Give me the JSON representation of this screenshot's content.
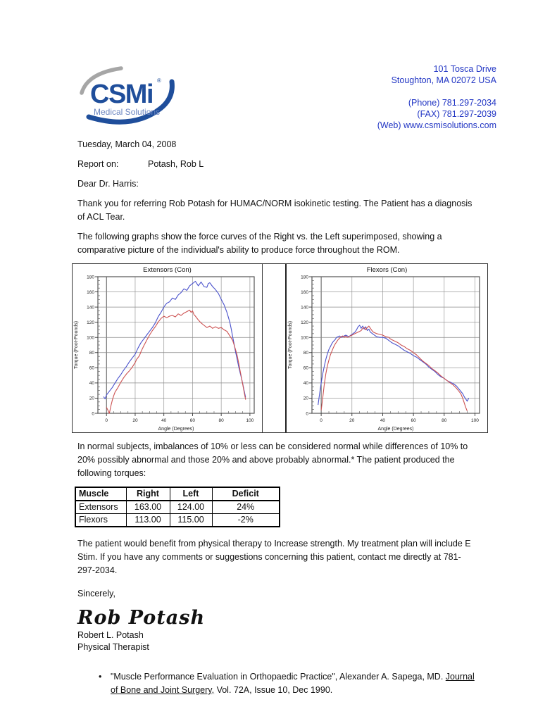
{
  "header": {
    "logo_text": "CSMi",
    "logo_registered": "®",
    "logo_subtitle": "Medical Solutions",
    "address_line1": "101 Tosca Drive",
    "address_line2": "Stoughton, MA 02072 USA",
    "phone": "(Phone) 781.297-2034",
    "fax": "(FAX) 781.297-2039",
    "web": "(Web) www.csmisolutions.com"
  },
  "letter": {
    "date": "Tuesday, March 04, 2008",
    "report_label": "Report on:",
    "patient": "Potash, Rob L",
    "salutation": "Dear Dr. Harris:",
    "para_referral": "Thank you for referring Rob Potash for HUMAC/NORM isokinetic testing.  The Patient has a diagnosis\nof ACL Tear.",
    "para_graphs": "The following graphs show the force curves of the Right vs. the Left superimposed, showing a\ncomparative picture of the individual's ability to produce force throughout the ROM.",
    "para_norms": "In normal subjects, imbalances of 10% or less can be considered normal while differences of 10% to\n20% possibly abnormal and those 20% and above probably abnormal.* The patient produced the\nfollowing torques:",
    "para_plan": "The patient would benefit from physical therapy to Increase strength.  My treatment plan will include E\nStim. If you have any comments or suggestions concerning this patient, contact me directly at 781-\n297-2034.",
    "closing": "Sincerely,",
    "signature_script": "Rob Potash",
    "signer_name": "Robert L. Potash",
    "signer_title": "Physical Therapist"
  },
  "torque_table": {
    "headers": [
      "Muscle",
      "Right",
      "Left",
      "Deficit"
    ],
    "rows": [
      [
        "Extensors",
        "163.00",
        "124.00",
        "24%"
      ],
      [
        "Flexors",
        "113.00",
        "115.00",
        "-2%"
      ]
    ]
  },
  "footnote": {
    "bullet": "•",
    "before": "\"Muscle Performance Evaluation in Orthopaedic Practice\", Alexander A. Sapega, MD. ",
    "underlined": "Journal\nof Bone and Joint Surgery,",
    "after": " Vol. 72A, Issue 10, Dec 1990."
  },
  "colors": {
    "accent_blue": "#2236c4",
    "logo_blue": "#1f4e9b",
    "curve_right_blue": "#4a52cc",
    "curve_left_red": "#cc5252"
  },
  "chart_data": [
    {
      "type": "line",
      "title": "Extensors (Con)",
      "xlabel": "Angle (Degrees)",
      "ylabel": "Torque (Foot-Pounds)",
      "xlim": [
        -6,
        103
      ],
      "ylim": [
        0,
        180
      ],
      "xticks": [
        0,
        20,
        40,
        60,
        80,
        100
      ],
      "yticks": [
        0,
        20,
        40,
        60,
        80,
        100,
        120,
        140,
        160,
        180
      ],
      "grid": true,
      "legend": "none",
      "series": [
        {
          "name": "Right",
          "color": "#4a52cc",
          "points": [
            [
              -2,
              22
            ],
            [
              -1,
              19
            ],
            [
              0,
              24
            ],
            [
              2,
              29
            ],
            [
              4,
              34
            ],
            [
              6,
              40
            ],
            [
              8,
              46
            ],
            [
              10,
              51
            ],
            [
              12,
              57
            ],
            [
              14,
              62
            ],
            [
              16,
              68
            ],
            [
              18,
              73
            ],
            [
              20,
              78
            ],
            [
              22,
              86
            ],
            [
              24,
              93
            ],
            [
              26,
              98
            ],
            [
              28,
              103
            ],
            [
              30,
              108
            ],
            [
              32,
              113
            ],
            [
              34,
              119
            ],
            [
              36,
              127
            ],
            [
              38,
              133
            ],
            [
              40,
              140
            ],
            [
              42,
              145
            ],
            [
              44,
              147
            ],
            [
              46,
              152
            ],
            [
              48,
              150
            ],
            [
              50,
              156
            ],
            [
              52,
              159
            ],
            [
              54,
              164
            ],
            [
              56,
              162
            ],
            [
              58,
              168
            ],
            [
              60,
              171
            ],
            [
              62,
              174
            ],
            [
              64,
              168
            ],
            [
              66,
              173
            ],
            [
              68,
              167
            ],
            [
              70,
              166
            ],
            [
              71,
              171
            ],
            [
              72,
              172
            ],
            [
              74,
              167
            ],
            [
              76,
              163
            ],
            [
              78,
              158
            ],
            [
              80,
              150
            ],
            [
              82,
              143
            ],
            [
              84,
              133
            ],
            [
              86,
              120
            ],
            [
              87,
              111
            ],
            [
              88,
              101
            ],
            [
              89,
              91
            ],
            [
              90,
              81
            ],
            [
              91,
              72
            ],
            [
              92,
              63
            ],
            [
              93,
              55
            ],
            [
              94,
              47
            ],
            [
              95,
              39
            ],
            [
              96,
              30
            ],
            [
              97,
              21
            ]
          ]
        },
        {
          "name": "Left",
          "color": "#cc5252",
          "points": [
            [
              0,
              8
            ],
            [
              1,
              4
            ],
            [
              2,
              0
            ],
            [
              3,
              9
            ],
            [
              4,
              17
            ],
            [
              5,
              23
            ],
            [
              6,
              28
            ],
            [
              8,
              34
            ],
            [
              10,
              41
            ],
            [
              12,
              47
            ],
            [
              14,
              52
            ],
            [
              16,
              56
            ],
            [
              18,
              61
            ],
            [
              20,
              67
            ],
            [
              21,
              71
            ],
            [
              23,
              76
            ],
            [
              24,
              81
            ],
            [
              26,
              89
            ],
            [
              28,
              96
            ],
            [
              30,
              103
            ],
            [
              32,
              109
            ],
            [
              34,
              114
            ],
            [
              36,
              120
            ],
            [
              38,
              125
            ],
            [
              40,
              128
            ],
            [
              42,
              126
            ],
            [
              44,
              128
            ],
            [
              46,
              129
            ],
            [
              48,
              127
            ],
            [
              50,
              131
            ],
            [
              52,
              129
            ],
            [
              54,
              132
            ],
            [
              56,
              134
            ],
            [
              58,
              136
            ],
            [
              59,
              133
            ],
            [
              60,
              135
            ],
            [
              61,
              130
            ],
            [
              62,
              128
            ],
            [
              64,
              123
            ],
            [
              66,
              119
            ],
            [
              68,
              116
            ],
            [
              70,
              113
            ],
            [
              72,
              115
            ],
            [
              74,
              112
            ],
            [
              76,
              114
            ],
            [
              78,
              112
            ],
            [
              80,
              113
            ],
            [
              82,
              110
            ],
            [
              84,
              108
            ],
            [
              85,
              105
            ],
            [
              86,
              102
            ],
            [
              88,
              96
            ],
            [
              89,
              90
            ],
            [
              90,
              84
            ],
            [
              91,
              77
            ],
            [
              92,
              68
            ],
            [
              93,
              58
            ],
            [
              94,
              48
            ],
            [
              95,
              38
            ],
            [
              96,
              28
            ],
            [
              97,
              18
            ]
          ]
        }
      ]
    },
    {
      "type": "line",
      "title": "Flexors (Con)",
      "xlabel": "Angle (Degrees)",
      "ylabel": "Torque (Foot-Pounds)",
      "xlim": [
        -6,
        103
      ],
      "ylim": [
        0,
        180
      ],
      "xticks": [
        0,
        20,
        40,
        60,
        80,
        100
      ],
      "yticks": [
        0,
        20,
        40,
        60,
        80,
        100,
        120,
        140,
        160,
        180
      ],
      "grid": true,
      "legend": "none",
      "series": [
        {
          "name": "Right",
          "color": "#4a52cc",
          "points": [
            [
              -2,
              11
            ],
            [
              -1,
              26
            ],
            [
              0,
              40
            ],
            [
              1,
              52
            ],
            [
              2,
              62
            ],
            [
              3,
              71
            ],
            [
              4,
              78
            ],
            [
              5,
              84
            ],
            [
              6,
              88
            ],
            [
              7,
              92
            ],
            [
              8,
              95
            ],
            [
              9,
              97
            ],
            [
              10,
              100
            ],
            [
              12,
              102
            ],
            [
              13,
              100
            ],
            [
              14,
              101
            ],
            [
              16,
              103
            ],
            [
              18,
              101
            ],
            [
              20,
              104
            ],
            [
              22,
              107
            ],
            [
              23,
              110
            ],
            [
              24,
              114
            ],
            [
              25,
              116
            ],
            [
              26,
              112
            ],
            [
              27,
              115
            ],
            [
              28,
              111
            ],
            [
              29,
              114
            ],
            [
              30,
              109
            ],
            [
              31,
              111
            ],
            [
              32,
              107
            ],
            [
              34,
              104
            ],
            [
              36,
              101
            ],
            [
              38,
              100
            ],
            [
              40,
              100
            ],
            [
              42,
              99
            ],
            [
              44,
              96
            ],
            [
              46,
              93
            ],
            [
              48,
              91
            ],
            [
              50,
              89
            ],
            [
              52,
              86
            ],
            [
              54,
              83
            ],
            [
              56,
              81
            ],
            [
              58,
              79
            ],
            [
              60,
              76
            ],
            [
              62,
              74
            ],
            [
              64,
              71
            ],
            [
              66,
              68
            ],
            [
              68,
              65
            ],
            [
              70,
              61
            ],
            [
              72,
              58
            ],
            [
              74,
              55
            ],
            [
              76,
              51
            ],
            [
              78,
              48
            ],
            [
              80,
              46
            ],
            [
              82,
              43
            ],
            [
              84,
              41
            ],
            [
              86,
              39
            ],
            [
              88,
              36
            ],
            [
              90,
              31
            ],
            [
              92,
              26
            ],
            [
              93,
              22
            ],
            [
              94,
              19
            ],
            [
              95,
              16
            ],
            [
              96,
              20
            ]
          ]
        },
        {
          "name": "Left",
          "color": "#cc5252",
          "points": [
            [
              0,
              4
            ],
            [
              1,
              20
            ],
            [
              2,
              38
            ],
            [
              3,
              52
            ],
            [
              4,
              62
            ],
            [
              5,
              70
            ],
            [
              6,
              77
            ],
            [
              7,
              82
            ],
            [
              8,
              87
            ],
            [
              9,
              91
            ],
            [
              10,
              94
            ],
            [
              11,
              97
            ],
            [
              12,
              99
            ],
            [
              13,
              101
            ],
            [
              14,
              102
            ],
            [
              15,
              100
            ],
            [
              16,
              102
            ],
            [
              17,
              100
            ],
            [
              18,
              101
            ],
            [
              20,
              103
            ],
            [
              22,
              105
            ],
            [
              24,
              107
            ],
            [
              26,
              109
            ],
            [
              27,
              112
            ],
            [
              28,
              113
            ],
            [
              29,
              110
            ],
            [
              30,
              113
            ],
            [
              31,
              115
            ],
            [
              32,
              112
            ],
            [
              33,
              109
            ],
            [
              34,
              107
            ],
            [
              36,
              105
            ],
            [
              38,
              104
            ],
            [
              40,
              103
            ],
            [
              42,
              101
            ],
            [
              44,
              100
            ],
            [
              45,
              98
            ],
            [
              46,
              97
            ],
            [
              48,
              95
            ],
            [
              50,
              93
            ],
            [
              52,
              90
            ],
            [
              54,
              88
            ],
            [
              56,
              85
            ],
            [
              58,
              83
            ],
            [
              60,
              80
            ],
            [
              62,
              77
            ],
            [
              64,
              73
            ],
            [
              66,
              69
            ],
            [
              68,
              66
            ],
            [
              70,
              63
            ],
            [
              72,
              59
            ],
            [
              74,
              56
            ],
            [
              76,
              53
            ],
            [
              78,
              49
            ],
            [
              80,
              46
            ],
            [
              82,
              43
            ],
            [
              84,
              40
            ],
            [
              86,
              37
            ],
            [
              88,
              33
            ],
            [
              90,
              28
            ],
            [
              91,
              25
            ],
            [
              92,
              20
            ],
            [
              93,
              14
            ],
            [
              94,
              8
            ],
            [
              95,
              3
            ]
          ]
        }
      ]
    }
  ]
}
